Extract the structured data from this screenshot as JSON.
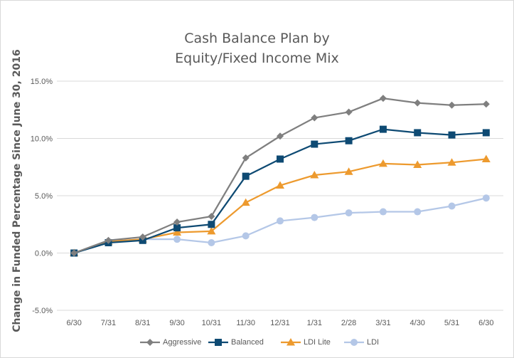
{
  "chart_data": {
    "type": "line",
    "title_lines": [
      "Cash Balance Plan by",
      "Equity/Fixed Income Mix"
    ],
    "xlabel": "",
    "ylabel": "Change in Funded Percentage Since June 30, 2016",
    "categories": [
      "6/30",
      "7/31",
      "8/31",
      "9/30",
      "10/31",
      "11/30",
      "12/31",
      "1/31",
      "2/28",
      "3/31",
      "4/30",
      "5/31",
      "6/30"
    ],
    "ylim": [
      -5.0,
      15.0
    ],
    "yticks": [
      "-5.0%",
      "0.0%",
      "5.0%",
      "10.0%",
      "15.0%"
    ],
    "ytick_values": [
      -5,
      0,
      5,
      10,
      15
    ],
    "grid": true,
    "legend_position": "bottom",
    "series": [
      {
        "name": "Aggressive",
        "color": "#7f7f7f",
        "marker": "diamond",
        "values": [
          0.0,
          1.1,
          1.4,
          2.7,
          3.2,
          8.3,
          10.2,
          11.8,
          12.3,
          13.5,
          13.1,
          12.9,
          13.0
        ]
      },
      {
        "name": "Balanced",
        "color": "#0e4a73",
        "marker": "square",
        "values": [
          0.0,
          0.9,
          1.1,
          2.2,
          2.5,
          6.7,
          8.2,
          9.5,
          9.8,
          10.8,
          10.5,
          10.3,
          10.5
        ]
      },
      {
        "name": "LDI Lite",
        "color": "#ed9a2e",
        "marker": "triangle",
        "values": [
          0.0,
          1.0,
          1.2,
          1.8,
          1.9,
          4.4,
          5.9,
          6.8,
          7.1,
          7.8,
          7.7,
          7.9,
          8.2
        ]
      },
      {
        "name": "LDI",
        "color": "#b4c7e7",
        "marker": "circle",
        "values": [
          0.0,
          1.0,
          1.2,
          1.2,
          0.9,
          1.5,
          2.8,
          3.1,
          3.5,
          3.6,
          3.6,
          4.1,
          4.8
        ]
      }
    ]
  }
}
